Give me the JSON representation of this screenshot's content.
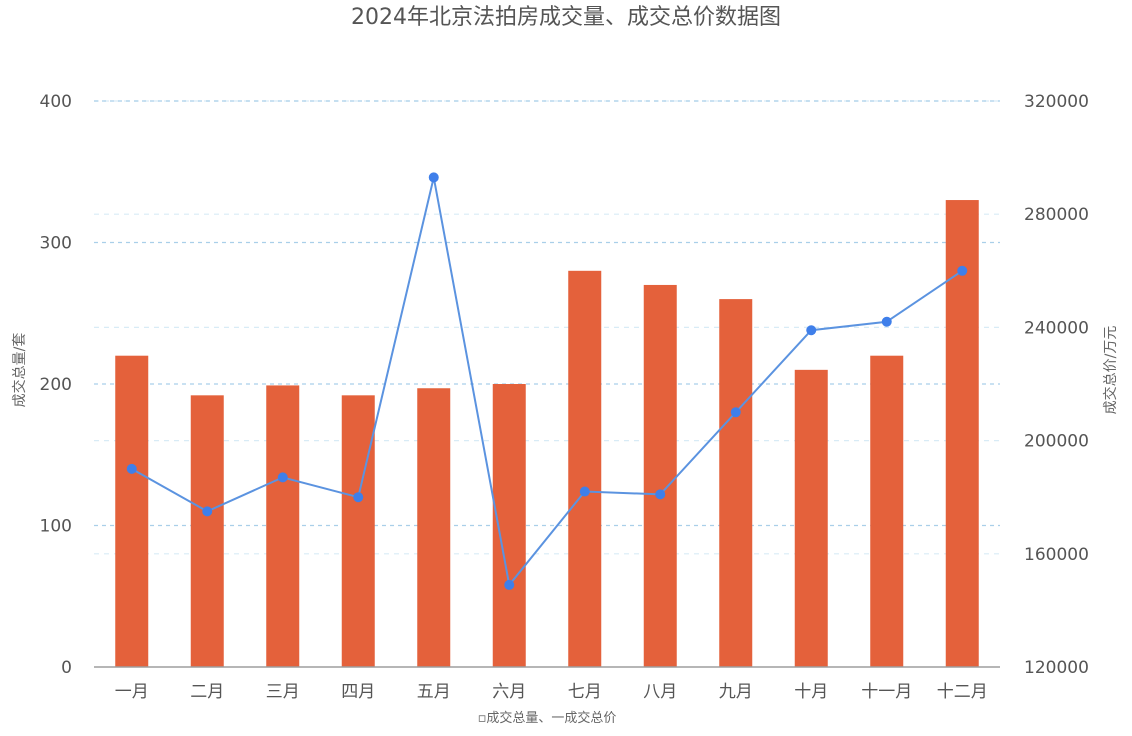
{
  "colors": {
    "bar": "#E4613B",
    "line": "#5B93E0",
    "point": "#3F7FEA",
    "grid_left": "#a9cfe9",
    "grid_right": "#d8ebf6",
    "axis": "#9e9e9e",
    "text": "#555555"
  },
  "chart_data": {
    "type": "bar",
    "title": "2024年北京法拍房成交量、成交总价数据图",
    "categories": [
      "一月",
      "二月",
      "三月",
      "四月",
      "五月",
      "六月",
      "七月",
      "八月",
      "九月",
      "十月",
      "十一月",
      "十二月"
    ],
    "series": [
      {
        "name": "成交总量",
        "type": "bar",
        "axis": "left",
        "values": [
          220,
          192,
          199,
          192,
          197,
          200,
          280,
          270,
          260,
          210,
          220,
          330
        ]
      },
      {
        "name": "成交总价",
        "type": "line",
        "axis": "right",
        "values": [
          190000,
          175000,
          187000,
          180000,
          293000,
          149000,
          182000,
          181000,
          210000,
          239000,
          242000,
          260000
        ]
      }
    ],
    "y_left": {
      "label": "成交总量/套",
      "ylim": [
        0,
        400
      ],
      "ticks": [
        0,
        100,
        200,
        300,
        400
      ],
      "tick_labels": [
        "0",
        "100",
        "200",
        "300",
        "400"
      ]
    },
    "y_right": {
      "label": "成交总价/万元",
      "ylim": [
        120000,
        320000
      ],
      "ticks": [
        120000,
        160000,
        200000,
        240000,
        280000,
        320000
      ],
      "tick_labels": [
        "120000",
        "160000",
        "200000",
        "240000",
        "280000",
        "320000"
      ]
    },
    "legend": {
      "text": "▫成交总量、一成交总价",
      "placement": "bottom"
    },
    "grid": true
  }
}
